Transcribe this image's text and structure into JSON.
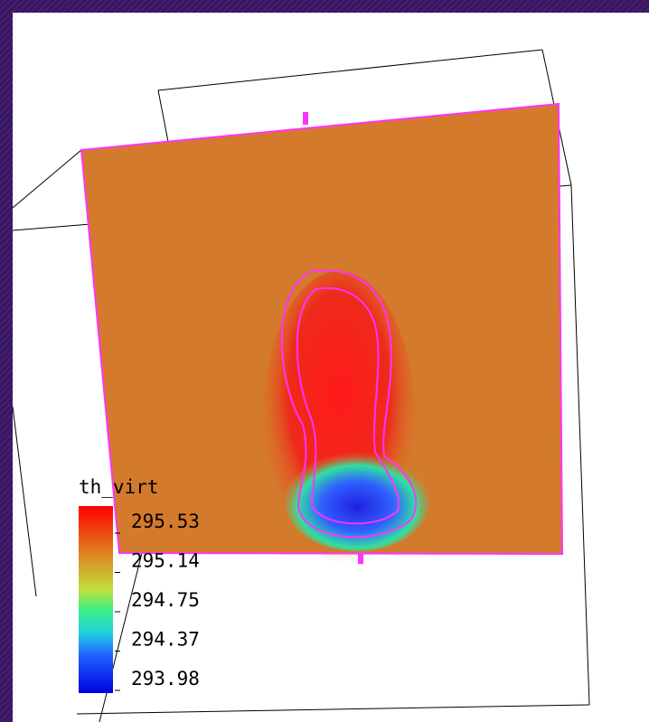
{
  "legend": {
    "title": "th_virt",
    "ticks": [
      "295.53",
      "295.14",
      "294.75",
      "294.37",
      "293.98"
    ]
  }
}
